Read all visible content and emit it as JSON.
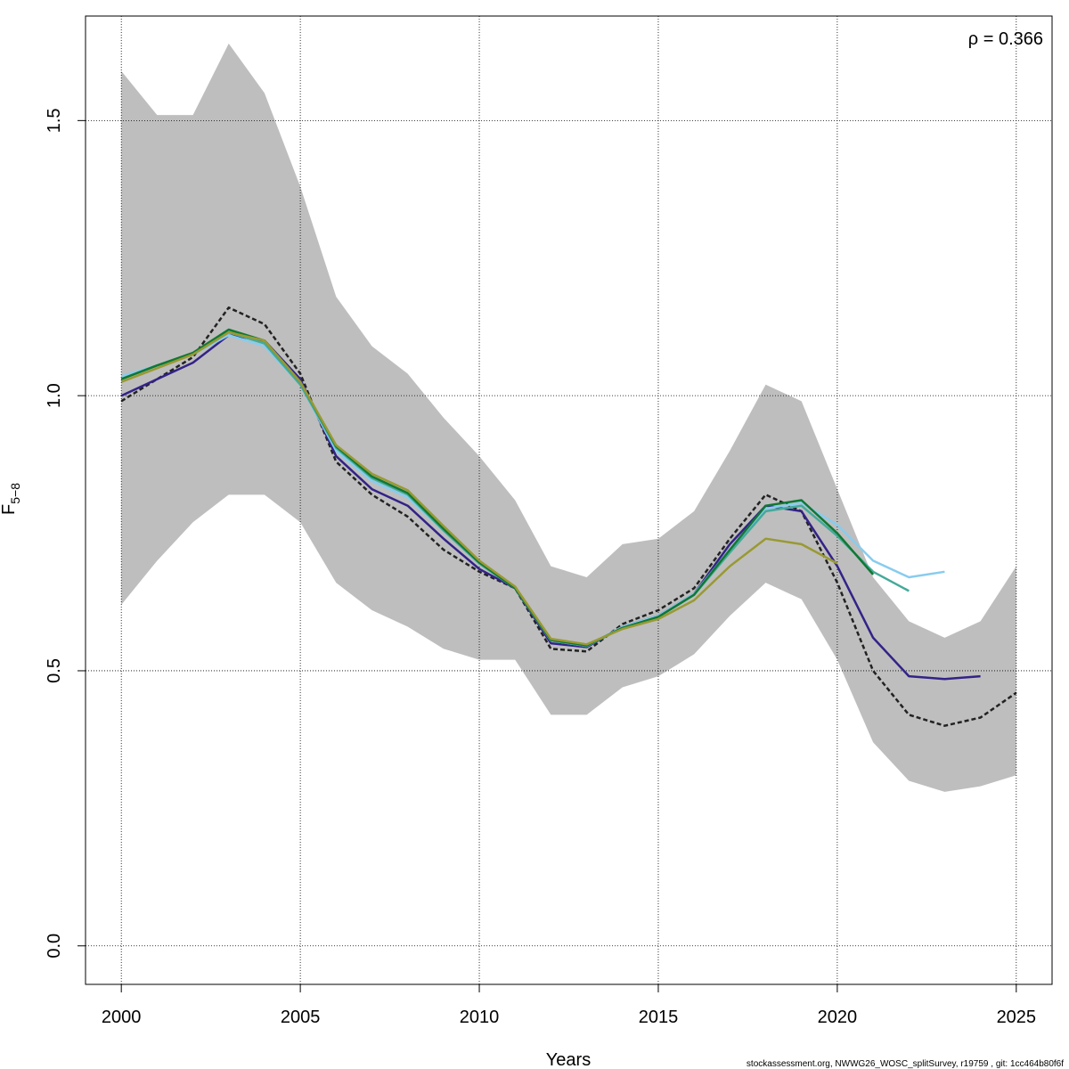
{
  "chart_data": {
    "type": "line",
    "xlabel": "Years",
    "ylabel_main": "F",
    "ylabel_sub": "5−8",
    "annotation": "ρ = 0.366",
    "footer": "stockassessment.org, NWWG26_WOSC_splitSurvey, r19759 , git: 1cc464b80f6f",
    "xlim": [
      1999,
      2026
    ],
    "ylim": [
      -0.07,
      1.69
    ],
    "x_ticks": [
      2000,
      2005,
      2010,
      2015,
      2020,
      2025
    ],
    "y_ticks": [
      0.0,
      0.5,
      1.0,
      1.5
    ],
    "y_tick_labels": [
      "0.0",
      "0.5",
      "1.0",
      "1.5"
    ],
    "grid": true,
    "confidence_band": {
      "x": [
        2000,
        2001,
        2002,
        2003,
        2004,
        2005,
        2006,
        2007,
        2008,
        2009,
        2010,
        2011,
        2012,
        2013,
        2014,
        2015,
        2016,
        2017,
        2018,
        2019,
        2020,
        2021,
        2022,
        2023,
        2024,
        2025
      ],
      "upper": [
        1.59,
        1.51,
        1.51,
        1.64,
        1.55,
        1.38,
        1.18,
        1.09,
        1.04,
        0.96,
        0.89,
        0.81,
        0.69,
        0.67,
        0.73,
        0.74,
        0.79,
        0.9,
        1.02,
        0.99,
        0.83,
        0.67,
        0.59,
        0.56,
        0.59,
        0.69
      ],
      "lower": [
        0.62,
        0.7,
        0.77,
        0.82,
        0.82,
        0.77,
        0.66,
        0.61,
        0.58,
        0.54,
        0.52,
        0.52,
        0.42,
        0.42,
        0.47,
        0.49,
        0.53,
        0.6,
        0.66,
        0.63,
        0.52,
        0.37,
        0.3,
        0.28,
        0.29,
        0.31
      ],
      "color": "#bebebe"
    },
    "series": [
      {
        "color": "#222222",
        "dashed": true,
        "x": [
          2000,
          2001,
          2002,
          2003,
          2004,
          2005,
          2006,
          2007,
          2008,
          2009,
          2010,
          2011,
          2012,
          2013,
          2014,
          2015,
          2016,
          2017,
          2018,
          2019,
          2020,
          2021,
          2022,
          2023,
          2024,
          2025
        ],
        "y": [
          0.99,
          1.03,
          1.07,
          1.16,
          1.13,
          1.04,
          0.88,
          0.82,
          0.78,
          0.72,
          0.68,
          0.65,
          0.54,
          0.535,
          0.585,
          0.61,
          0.65,
          0.74,
          0.82,
          0.79,
          0.66,
          0.5,
          0.42,
          0.4,
          0.415,
          0.46
        ]
      },
      {
        "color": "#332288",
        "dashed": false,
        "x": [
          2000,
          2001,
          2002,
          2003,
          2004,
          2005,
          2006,
          2007,
          2008,
          2009,
          2010,
          2011,
          2012,
          2013,
          2014,
          2015,
          2016,
          2017,
          2018,
          2019,
          2020,
          2021,
          2022,
          2023,
          2024
        ],
        "y": [
          1.0,
          1.03,
          1.06,
          1.11,
          1.1,
          1.03,
          0.89,
          0.83,
          0.8,
          0.74,
          0.685,
          0.65,
          0.55,
          0.543,
          0.58,
          0.6,
          0.64,
          0.73,
          0.8,
          0.79,
          0.69,
          0.56,
          0.49,
          0.485,
          0.49
        ]
      },
      {
        "color": "#88ccee",
        "dashed": false,
        "x": [
          2000,
          2001,
          2002,
          2003,
          2004,
          2005,
          2006,
          2007,
          2008,
          2009,
          2010,
          2011,
          2012,
          2013,
          2014,
          2015,
          2016,
          2017,
          2018,
          2019,
          2020,
          2021,
          2022,
          2023
        ],
        "y": [
          1.035,
          1.055,
          1.075,
          1.11,
          1.09,
          1.02,
          0.9,
          0.845,
          0.815,
          0.755,
          0.695,
          0.65,
          0.555,
          0.545,
          0.58,
          0.6,
          0.64,
          0.72,
          0.795,
          0.805,
          0.765,
          0.7,
          0.67,
          0.68
        ]
      },
      {
        "color": "#44aa99",
        "dashed": false,
        "x": [
          2000,
          2001,
          2002,
          2003,
          2004,
          2005,
          2006,
          2007,
          2008,
          2009,
          2010,
          2011,
          2012,
          2013,
          2014,
          2015,
          2016,
          2017,
          2018,
          2019,
          2020,
          2021,
          2022
        ],
        "y": [
          1.03,
          1.055,
          1.075,
          1.115,
          1.095,
          1.02,
          0.905,
          0.85,
          0.82,
          0.755,
          0.695,
          0.65,
          0.555,
          0.545,
          0.578,
          0.598,
          0.638,
          0.715,
          0.79,
          0.8,
          0.745,
          0.68,
          0.645
        ]
      },
      {
        "color": "#117733",
        "dashed": false,
        "x": [
          2000,
          2001,
          2002,
          2003,
          2004,
          2005,
          2006,
          2007,
          2008,
          2009,
          2010,
          2011,
          2012,
          2013,
          2014,
          2015,
          2016,
          2017,
          2018,
          2019,
          2020,
          2021
        ],
        "y": [
          1.03,
          1.055,
          1.078,
          1.12,
          1.1,
          1.025,
          0.908,
          0.853,
          0.823,
          0.758,
          0.697,
          0.65,
          0.556,
          0.546,
          0.578,
          0.598,
          0.638,
          0.72,
          0.8,
          0.81,
          0.75,
          0.675
        ]
      },
      {
        "color": "#999933",
        "dashed": false,
        "x": [
          2000,
          2001,
          2002,
          2003,
          2004,
          2005,
          2006,
          2007,
          2008,
          2009,
          2010,
          2011,
          2012,
          2013,
          2014,
          2015,
          2016,
          2017,
          2018,
          2019,
          2020
        ],
        "y": [
          1.025,
          1.05,
          1.075,
          1.115,
          1.1,
          1.025,
          0.91,
          0.858,
          0.828,
          0.763,
          0.7,
          0.653,
          0.558,
          0.548,
          0.576,
          0.594,
          0.628,
          0.69,
          0.74,
          0.73,
          0.695
        ]
      }
    ]
  }
}
